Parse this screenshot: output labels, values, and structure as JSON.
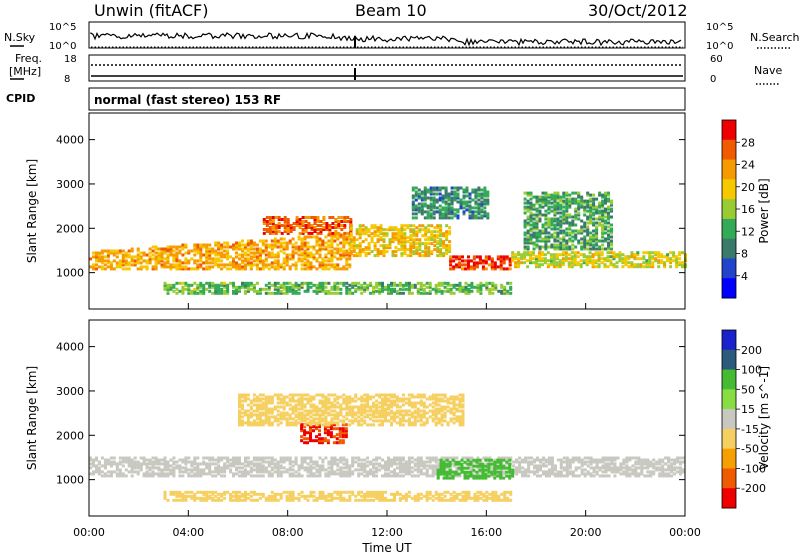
{
  "header": {
    "station": "Unwin (fitACF)",
    "beam": "Beam 10",
    "date": "30/Oct/2012"
  },
  "strip_labels": {
    "nsky": "N.Sky",
    "nsearch": "N.Search",
    "freq": "Freq.",
    "freq_unit": "[MHz]",
    "nave": "Nave",
    "cpid": "CPID",
    "mode": "normal (fast stereo) 153 RF",
    "noise_ticks": [
      "10^5",
      "10^0"
    ],
    "freq_ticks": [
      "18",
      "8"
    ],
    "nave_ticks": [
      "60",
      "0"
    ]
  },
  "chart_data": [
    {
      "type": "heatmap",
      "name": "power",
      "xlabel": "",
      "ylabel": "Slant Range [km]",
      "xlim": [
        0,
        24
      ],
      "ylim": [
        180,
        4600
      ],
      "yticks": [
        "1000",
        "2000",
        "3000",
        "4000"
      ],
      "yvalues": [
        1000,
        2000,
        3000,
        4000
      ],
      "colorbar": {
        "label": "Power [dB]",
        "ticks": [
          "4",
          "8",
          "12",
          "16",
          "20",
          "24",
          "28"
        ],
        "tick_values": [
          4,
          8,
          12,
          16,
          20,
          24,
          28
        ],
        "range": [
          0,
          32
        ],
        "colors": [
          "#0000ff",
          "#2244cc",
          "#3a7a6a",
          "#33aa55",
          "#99cc33",
          "#f5c800",
          "#f59a00",
          "#f05a00",
          "#ee0000"
        ]
      },
      "bands": [
        {
          "t0": 0.0,
          "t1": 10.5,
          "r0": 1050,
          "r1": 1450,
          "r1b": 1850,
          "value": 22
        },
        {
          "t0": 7.0,
          "t1": 10.5,
          "r0": 1850,
          "r1": 2250,
          "value": 26
        },
        {
          "t0": 10.5,
          "t1": 14.5,
          "r0": 1350,
          "r1": 2050,
          "value": 20
        },
        {
          "t0": 14.5,
          "t1": 17.0,
          "r0": 1050,
          "r1": 1350,
          "value": 28
        },
        {
          "t0": 13.0,
          "t1": 16.0,
          "r0": 2200,
          "r1": 2900,
          "value": 10
        },
        {
          "t0": 17.0,
          "t1": 24.0,
          "r0": 1100,
          "r1": 1450,
          "value": 18
        },
        {
          "t0": 17.5,
          "t1": 21.0,
          "r0": 1500,
          "r1": 2800,
          "value": 12
        },
        {
          "t0": 3.0,
          "t1": 17.0,
          "r0": 500,
          "r1": 750,
          "value": 14
        }
      ]
    },
    {
      "type": "heatmap",
      "name": "velocity",
      "xlabel": "Time UT",
      "ylabel": "Slant Range [km]",
      "xlim": [
        0,
        24
      ],
      "xticks": [
        "00:00",
        "04:00",
        "08:00",
        "12:00",
        "16:00",
        "20:00",
        "00:00"
      ],
      "xvalues": [
        0,
        4,
        8,
        12,
        16,
        20,
        24
      ],
      "ylim": [
        180,
        4600
      ],
      "yticks": [
        "1000",
        "2000",
        "3000",
        "4000"
      ],
      "yvalues": [
        1000,
        2000,
        3000,
        4000
      ],
      "colorbar": {
        "label": "Velocity [m s^-1]",
        "ticks": [
          "200",
          "100",
          "50",
          "15",
          "-15",
          "-50",
          "-100",
          "-200"
        ],
        "colors": [
          "#1a22cc",
          "#2c5a7a",
          "#44bb33",
          "#88dd44",
          "#c8c8c0",
          "#f5d060",
          "#f5a000",
          "#f05a00",
          "#ee0000"
        ]
      },
      "bands": [
        {
          "t0": 0.0,
          "t1": 24.0,
          "r0": 1050,
          "r1": 1500,
          "value": 0
        },
        {
          "t0": 8.5,
          "t1": 10.3,
          "r0": 1800,
          "r1": 2250,
          "value": -200
        },
        {
          "t0": 14.0,
          "t1": 17.0,
          "r0": 1000,
          "r1": 1450,
          "value": 60
        },
        {
          "t0": 3.0,
          "t1": 17.0,
          "r0": 500,
          "r1": 700,
          "value": -40
        },
        {
          "t0": 6.0,
          "t1": 15.0,
          "r0": 2200,
          "r1": 2900,
          "value": -30
        }
      ]
    }
  ]
}
